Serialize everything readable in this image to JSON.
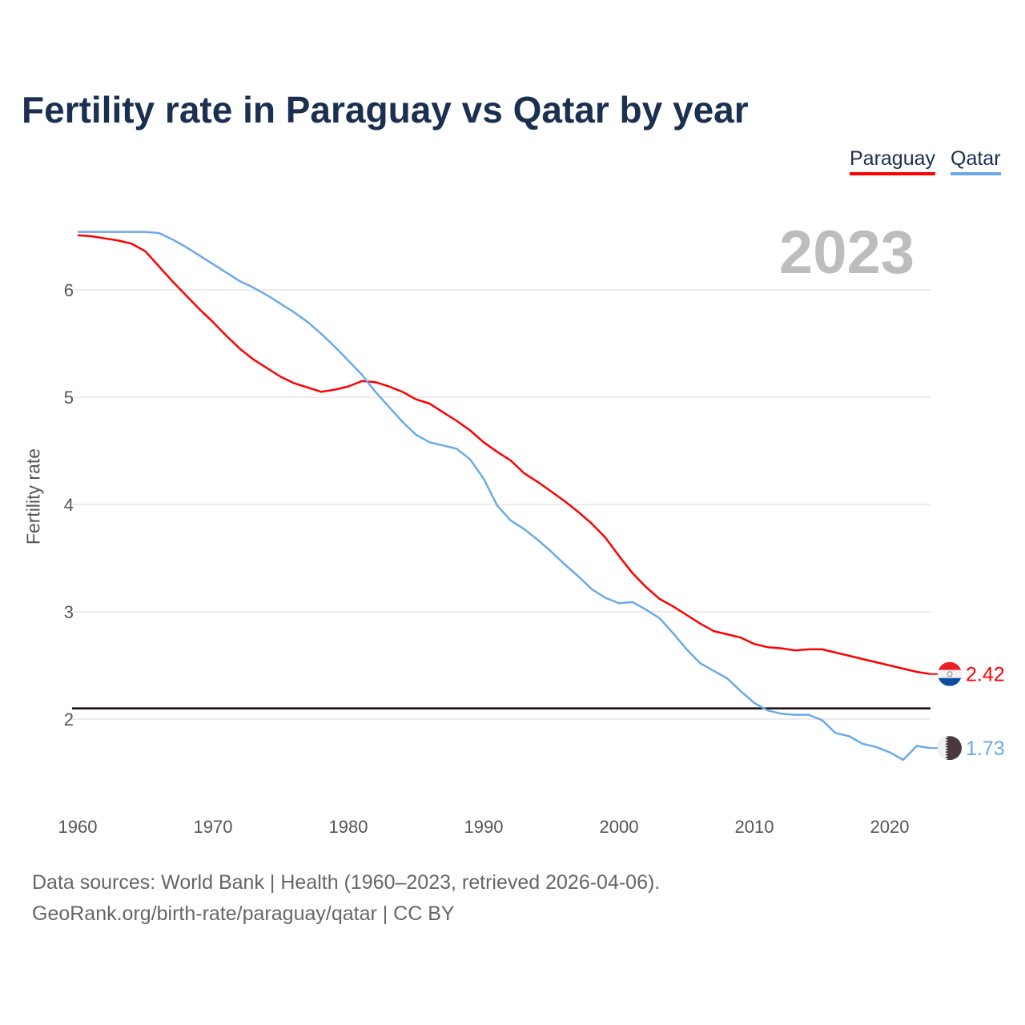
{
  "chart_data": {
    "type": "line",
    "title": "Fertility rate in Paraguay vs Qatar by year",
    "ylabel": "Fertility rate",
    "xlabel": "",
    "year_label": "2023",
    "xlim": [
      1960,
      2023
    ],
    "ylim": [
      1.5,
      6.7
    ],
    "x_ticks": [
      1960,
      1970,
      1980,
      1990,
      2000,
      2010,
      2020
    ],
    "y_ticks": [
      2,
      3,
      4,
      5,
      6
    ],
    "grid": true,
    "legend_position": "top-right",
    "reference_line": {
      "value": 2.1,
      "color": "#1a0a10"
    },
    "x": [
      1960,
      1961,
      1962,
      1963,
      1964,
      1965,
      1966,
      1967,
      1968,
      1969,
      1970,
      1971,
      1972,
      1973,
      1974,
      1975,
      1976,
      1977,
      1978,
      1979,
      1980,
      1981,
      1982,
      1983,
      1984,
      1985,
      1986,
      1987,
      1988,
      1989,
      1990,
      1991,
      1992,
      1993,
      1994,
      1995,
      1996,
      1997,
      1998,
      1999,
      2000,
      2001,
      2002,
      2003,
      2004,
      2005,
      2006,
      2007,
      2008,
      2009,
      2010,
      2011,
      2012,
      2013,
      2014,
      2015,
      2016,
      2017,
      2018,
      2019,
      2020,
      2021,
      2022,
      2023
    ],
    "series": [
      {
        "name": "Paraguay",
        "color": "#ff0000",
        "end_label": "2.42",
        "flag": "paraguay-flag",
        "values": [
          6.51,
          6.5,
          6.48,
          6.46,
          6.43,
          6.36,
          6.22,
          6.08,
          5.95,
          5.82,
          5.7,
          5.57,
          5.45,
          5.35,
          5.27,
          5.19,
          5.13,
          5.09,
          5.05,
          5.07,
          5.1,
          5.15,
          5.14,
          5.1,
          5.05,
          4.98,
          4.94,
          4.86,
          4.78,
          4.69,
          4.58,
          4.49,
          4.41,
          4.29,
          4.21,
          4.12,
          4.03,
          3.93,
          3.82,
          3.69,
          3.52,
          3.36,
          3.23,
          3.12,
          3.05,
          2.97,
          2.89,
          2.82,
          2.79,
          2.76,
          2.7,
          2.67,
          2.66,
          2.64,
          2.65,
          2.65,
          2.62,
          2.59,
          2.56,
          2.53,
          2.5,
          2.47,
          2.44,
          2.42
        ]
      },
      {
        "name": "Qatar",
        "color": "#6aaae8",
        "end_label": "1.73",
        "flag": "qatar-flag",
        "values": [
          6.54,
          6.54,
          6.54,
          6.54,
          6.54,
          6.54,
          6.53,
          6.47,
          6.4,
          6.32,
          6.24,
          6.16,
          6.08,
          6.02,
          5.95,
          5.87,
          5.79,
          5.7,
          5.59,
          5.47,
          5.34,
          5.21,
          5.05,
          4.91,
          4.77,
          4.65,
          4.58,
          4.55,
          4.52,
          4.42,
          4.24,
          3.99,
          3.85,
          3.77,
          3.67,
          3.56,
          3.44,
          3.33,
          3.21,
          3.13,
          3.08,
          3.09,
          3.02,
          2.94,
          2.8,
          2.65,
          2.52,
          2.45,
          2.38,
          2.26,
          2.15,
          2.08,
          2.05,
          2.04,
          2.04,
          1.99,
          1.87,
          1.84,
          1.77,
          1.74,
          1.69,
          1.62,
          1.75,
          1.73
        ]
      }
    ]
  },
  "footer": {
    "line1": "Data sources: World Bank | Health (1960–2023, retrieved 2026-04-06).",
    "line2": "GeoRank.org/birth-rate/paraguay/qatar | CC BY"
  }
}
